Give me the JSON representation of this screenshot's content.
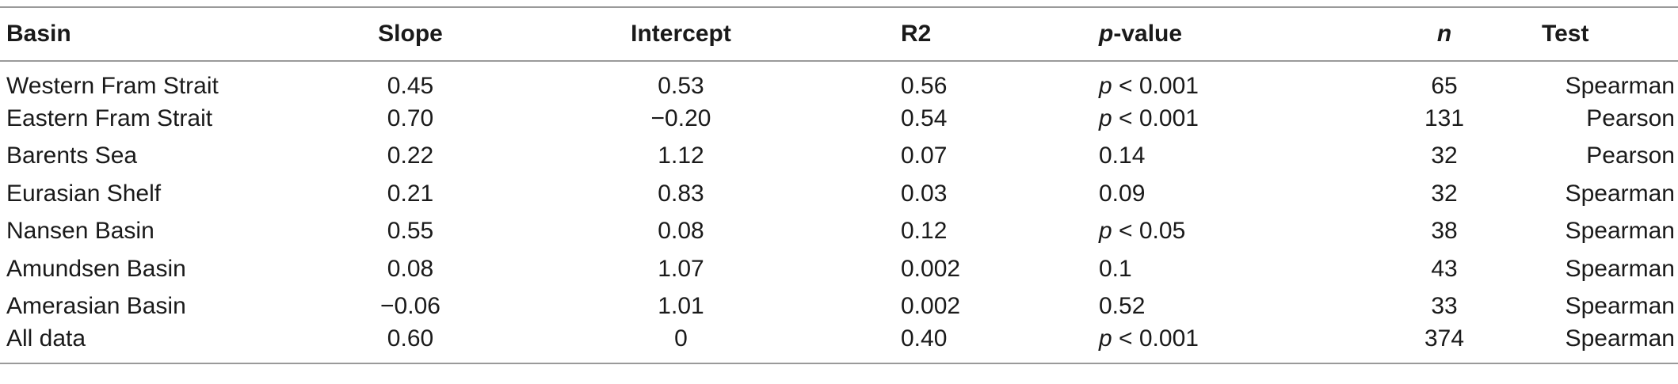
{
  "table": {
    "columns": [
      {
        "key": "basin",
        "label": "Basin"
      },
      {
        "key": "slope",
        "label": "Slope"
      },
      {
        "key": "intercept",
        "label": "Intercept"
      },
      {
        "key": "r2",
        "label": "R2"
      },
      {
        "key": "pvalue",
        "label_italic": "p",
        "label_rest": "-value"
      },
      {
        "key": "n",
        "label_italic": "n"
      },
      {
        "key": "test",
        "label": "Test"
      }
    ],
    "rows": [
      {
        "basin": "Western Fram Strait",
        "slope": "0.45",
        "intercept": "0.53",
        "r2": "0.56",
        "p_prefix": "p",
        "p_value": " < 0.001",
        "n": "65",
        "test": "Spearman"
      },
      {
        "basin": "Eastern Fram Strait",
        "slope": "0.70",
        "intercept": "−0.20",
        "r2": "0.54",
        "p_prefix": "p",
        "p_value": " < 0.001",
        "n": "131",
        "test": "Pearson"
      },
      {
        "basin": "Barents Sea",
        "slope": "0.22",
        "intercept": "1.12",
        "r2": "0.07",
        "p_prefix": "",
        "p_value": "0.14",
        "n": "32",
        "test": "Pearson"
      },
      {
        "basin": "Eurasian Shelf",
        "slope": "0.21",
        "intercept": "0.83",
        "r2": "0.03",
        "p_prefix": "",
        "p_value": "0.09",
        "n": "32",
        "test": "Spearman"
      },
      {
        "basin": "Nansen Basin",
        "slope": "0.55",
        "intercept": "0.08",
        "r2": "0.12",
        "p_prefix": "p",
        "p_value": " < 0.05",
        "n": "38",
        "test": "Spearman"
      },
      {
        "basin": "Amundsen Basin",
        "slope": "0.08",
        "intercept": "1.07",
        "r2": "0.002",
        "p_prefix": "",
        "p_value": "0.1",
        "n": "43",
        "test": "Spearman"
      },
      {
        "basin": "Amerasian Basin",
        "slope": "−0.06",
        "intercept": "1.01",
        "r2": "0.002",
        "p_prefix": "",
        "p_value": "0.52",
        "n": "33",
        "test": "Spearman"
      },
      {
        "basin": "All data",
        "slope": "0.60",
        "intercept": "0",
        "r2": "0.40",
        "p_prefix": "p",
        "p_value": " < 0.001",
        "n": "374",
        "test": "Spearman"
      }
    ]
  }
}
